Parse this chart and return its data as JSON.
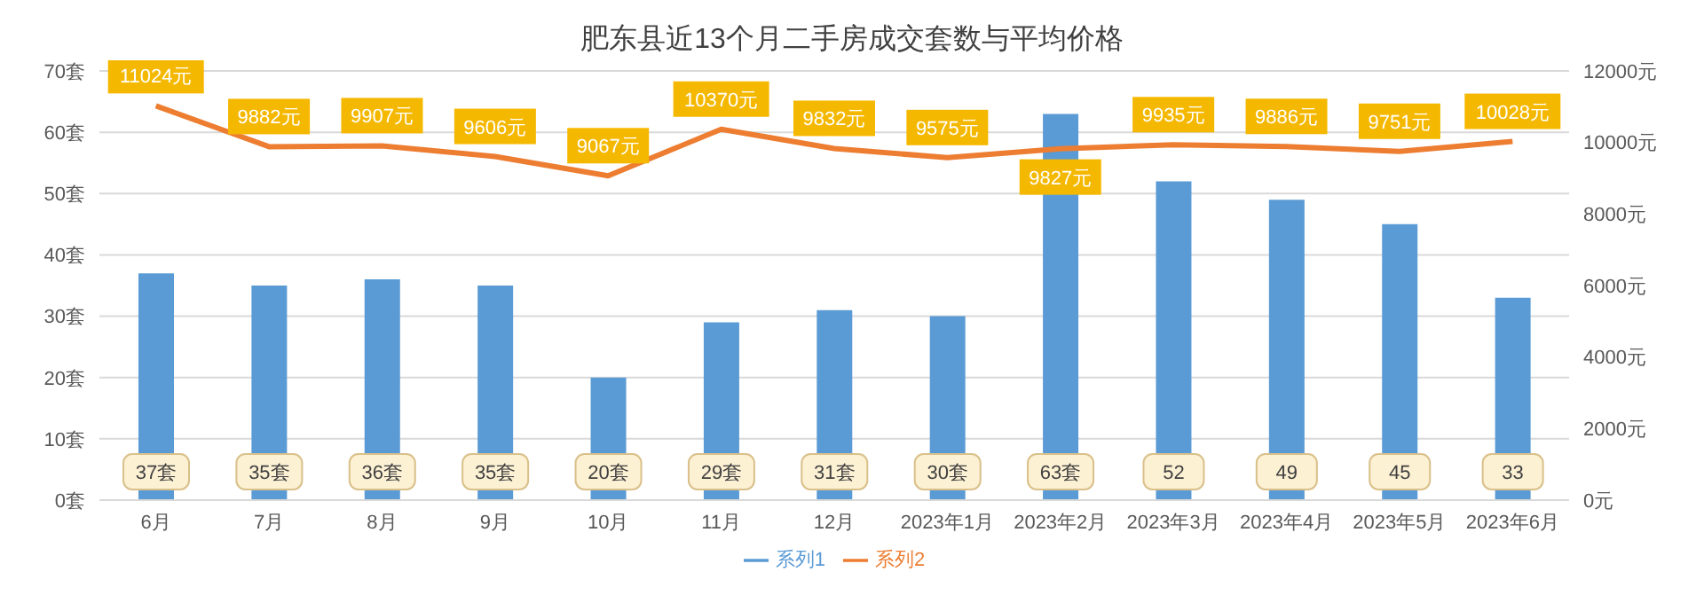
{
  "chart_data": {
    "type": "bar",
    "title": "肥东县近13个月二手房成交套数与平均价格",
    "categories": [
      "6月",
      "7月",
      "8月",
      "9月",
      "10月",
      "11月",
      "12月",
      "2023年1月",
      "2023年2月",
      "2023年3月",
      "2023年4月",
      "2023年5月",
      "2023年6月"
    ],
    "series": [
      {
        "name": "系列1",
        "color": "#5b9bd5",
        "values": [
          37,
          35,
          36,
          35,
          20,
          29,
          31,
          30,
          63,
          52,
          49,
          45,
          33
        ],
        "value_labels": [
          "37套",
          "35套",
          "36套",
          "35套",
          "20套",
          "29套",
          "31套",
          "30套",
          "63套",
          "52",
          "49",
          "45",
          "33"
        ]
      },
      {
        "name": "系列2",
        "type": "line",
        "axis": "y2",
        "color": "#ed7d31",
        "values": [
          11024,
          9882,
          9907,
          9606,
          9067,
          10370,
          9832,
          9575,
          9827,
          9935,
          9886,
          9751,
          10028
        ],
        "value_labels": [
          "11024元",
          "9882元",
          "9907元",
          "9606元",
          "9067元",
          "10370元",
          "9832元",
          "9575元",
          "9827元",
          "9935元",
          "9886元",
          "9751元",
          "10028元"
        ]
      }
    ],
    "ylim": [
      0,
      70
    ],
    "yticks": [
      {
        "value": 0,
        "label": "0套"
      },
      {
        "value": 10,
        "label": "10套"
      },
      {
        "value": 20,
        "label": "20套"
      },
      {
        "value": 30,
        "label": "30套"
      },
      {
        "value": 40,
        "label": "40套"
      },
      {
        "value": 50,
        "label": "50套"
      },
      {
        "value": 60,
        "label": "60套"
      },
      {
        "value": 70,
        "label": "70套"
      }
    ],
    "y2lim": [
      0,
      12000
    ],
    "y2ticks": [
      {
        "value": 0,
        "label": "0元"
      },
      {
        "value": 2000,
        "label": "2000元"
      },
      {
        "value": 4000,
        "label": "4000元"
      },
      {
        "value": 6000,
        "label": "6000元"
      },
      {
        "value": 8000,
        "label": "8000元"
      },
      {
        "value": 10000,
        "label": "10000元"
      },
      {
        "value": 12000,
        "label": "12000元"
      }
    ],
    "grid": "y",
    "legend": "bottom"
  }
}
